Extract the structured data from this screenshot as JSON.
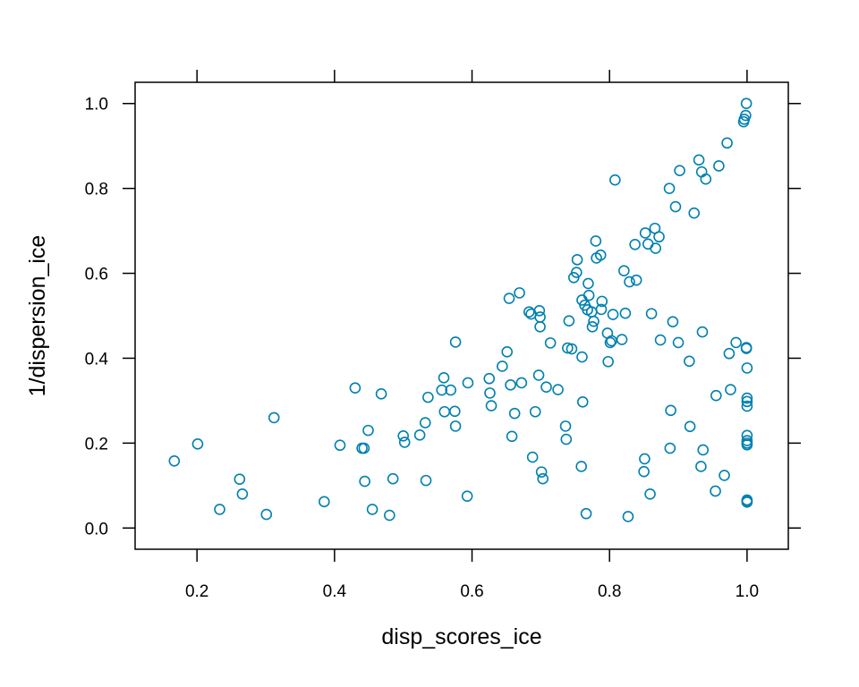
{
  "chart_data": {
    "type": "scatter",
    "xlabel": "disp_scores_ice",
    "ylabel": "1/dispersion_ice",
    "xlim": [
      0.11,
      1.06
    ],
    "ylim": [
      -0.05,
      1.05
    ],
    "xticks": [
      0.2,
      0.4,
      0.6,
      0.8,
      1.0
    ],
    "yticks": [
      0.0,
      0.2,
      0.4,
      0.6,
      0.8,
      1.0
    ],
    "xtick_labels": [
      "0.2",
      "0.4",
      "0.6",
      "0.8",
      "1.0"
    ],
    "ytick_labels": [
      "0.0",
      "0.2",
      "0.4",
      "0.6",
      "0.8",
      "1.0"
    ],
    "marker_color": "#0080B0",
    "grid": false,
    "points": [
      {
        "x": 0.167,
        "y": 0.158
      },
      {
        "x": 0.201,
        "y": 0.198
      },
      {
        "x": 0.233,
        "y": 0.044
      },
      {
        "x": 0.262,
        "y": 0.115
      },
      {
        "x": 0.266,
        "y": 0.08
      },
      {
        "x": 0.301,
        "y": 0.032
      },
      {
        "x": 0.312,
        "y": 0.26
      },
      {
        "x": 0.385,
        "y": 0.062
      },
      {
        "x": 0.408,
        "y": 0.195
      },
      {
        "x": 0.43,
        "y": 0.33
      },
      {
        "x": 0.44,
        "y": 0.188
      },
      {
        "x": 0.443,
        "y": 0.188
      },
      {
        "x": 0.444,
        "y": 0.11
      },
      {
        "x": 0.449,
        "y": 0.23
      },
      {
        "x": 0.455,
        "y": 0.044
      },
      {
        "x": 0.468,
        "y": 0.316
      },
      {
        "x": 0.48,
        "y": 0.03
      },
      {
        "x": 0.485,
        "y": 0.116
      },
      {
        "x": 0.5,
        "y": 0.217
      },
      {
        "x": 0.502,
        "y": 0.202
      },
      {
        "x": 0.524,
        "y": 0.219
      },
      {
        "x": 0.532,
        "y": 0.248
      },
      {
        "x": 0.533,
        "y": 0.112
      },
      {
        "x": 0.536,
        "y": 0.308
      },
      {
        "x": 0.556,
        "y": 0.325
      },
      {
        "x": 0.559,
        "y": 0.354
      },
      {
        "x": 0.56,
        "y": 0.274
      },
      {
        "x": 0.569,
        "y": 0.325
      },
      {
        "x": 0.575,
        "y": 0.275
      },
      {
        "x": 0.576,
        "y": 0.24
      },
      {
        "x": 0.576,
        "y": 0.438
      },
      {
        "x": 0.593,
        "y": 0.075
      },
      {
        "x": 0.594,
        "y": 0.342
      },
      {
        "x": 0.625,
        "y": 0.352
      },
      {
        "x": 0.626,
        "y": 0.318
      },
      {
        "x": 0.628,
        "y": 0.288
      },
      {
        "x": 0.644,
        "y": 0.381
      },
      {
        "x": 0.651,
        "y": 0.415
      },
      {
        "x": 0.654,
        "y": 0.541
      },
      {
        "x": 0.656,
        "y": 0.337
      },
      {
        "x": 0.658,
        "y": 0.216
      },
      {
        "x": 0.662,
        "y": 0.27
      },
      {
        "x": 0.669,
        "y": 0.554
      },
      {
        "x": 0.672,
        "y": 0.342
      },
      {
        "x": 0.683,
        "y": 0.509
      },
      {
        "x": 0.686,
        "y": 0.504
      },
      {
        "x": 0.688,
        "y": 0.167
      },
      {
        "x": 0.692,
        "y": 0.274
      },
      {
        "x": 0.697,
        "y": 0.36
      },
      {
        "x": 0.698,
        "y": 0.512
      },
      {
        "x": 0.699,
        "y": 0.497
      },
      {
        "x": 0.699,
        "y": 0.474
      },
      {
        "x": 0.701,
        "y": 0.132
      },
      {
        "x": 0.703,
        "y": 0.116
      },
      {
        "x": 0.708,
        "y": 0.332
      },
      {
        "x": 0.714,
        "y": 0.436
      },
      {
        "x": 0.725,
        "y": 0.326
      },
      {
        "x": 0.736,
        "y": 0.24
      },
      {
        "x": 0.737,
        "y": 0.209
      },
      {
        "x": 0.739,
        "y": 0.424
      },
      {
        "x": 0.741,
        "y": 0.488
      },
      {
        "x": 0.745,
        "y": 0.422
      },
      {
        "x": 0.748,
        "y": 0.59
      },
      {
        "x": 0.752,
        "y": 0.602
      },
      {
        "x": 0.753,
        "y": 0.632
      },
      {
        "x": 0.759,
        "y": 0.145
      },
      {
        "x": 0.76,
        "y": 0.537
      },
      {
        "x": 0.76,
        "y": 0.403
      },
      {
        "x": 0.761,
        "y": 0.297
      },
      {
        "x": 0.764,
        "y": 0.525
      },
      {
        "x": 0.766,
        "y": 0.034
      },
      {
        "x": 0.768,
        "y": 0.514
      },
      {
        "x": 0.769,
        "y": 0.576
      },
      {
        "x": 0.77,
        "y": 0.548
      },
      {
        "x": 0.774,
        "y": 0.509
      },
      {
        "x": 0.775,
        "y": 0.474
      },
      {
        "x": 0.777,
        "y": 0.487
      },
      {
        "x": 0.78,
        "y": 0.676
      },
      {
        "x": 0.781,
        "y": 0.636
      },
      {
        "x": 0.787,
        "y": 0.643
      },
      {
        "x": 0.788,
        "y": 0.515
      },
      {
        "x": 0.789,
        "y": 0.534
      },
      {
        "x": 0.797,
        "y": 0.459
      },
      {
        "x": 0.798,
        "y": 0.392
      },
      {
        "x": 0.801,
        "y": 0.437
      },
      {
        "x": 0.803,
        "y": 0.441
      },
      {
        "x": 0.805,
        "y": 0.503
      },
      {
        "x": 0.808,
        "y": 0.82
      },
      {
        "x": 0.818,
        "y": 0.444
      },
      {
        "x": 0.821,
        "y": 0.606
      },
      {
        "x": 0.823,
        "y": 0.506
      },
      {
        "x": 0.827,
        "y": 0.027
      },
      {
        "x": 0.829,
        "y": 0.58
      },
      {
        "x": 0.837,
        "y": 0.668
      },
      {
        "x": 0.839,
        "y": 0.584
      },
      {
        "x": 0.85,
        "y": 0.133
      },
      {
        "x": 0.851,
        "y": 0.163
      },
      {
        "x": 0.852,
        "y": 0.695
      },
      {
        "x": 0.856,
        "y": 0.669
      },
      {
        "x": 0.859,
        "y": 0.08
      },
      {
        "x": 0.861,
        "y": 0.505
      },
      {
        "x": 0.866,
        "y": 0.706
      },
      {
        "x": 0.867,
        "y": 0.659
      },
      {
        "x": 0.872,
        "y": 0.686
      },
      {
        "x": 0.874,
        "y": 0.443
      },
      {
        "x": 0.887,
        "y": 0.8
      },
      {
        "x": 0.888,
        "y": 0.188
      },
      {
        "x": 0.889,
        "y": 0.277
      },
      {
        "x": 0.892,
        "y": 0.486
      },
      {
        "x": 0.896,
        "y": 0.757
      },
      {
        "x": 0.9,
        "y": 0.437
      },
      {
        "x": 0.902,
        "y": 0.842
      },
      {
        "x": 0.916,
        "y": 0.393
      },
      {
        "x": 0.917,
        "y": 0.239
      },
      {
        "x": 0.923,
        "y": 0.742
      },
      {
        "x": 0.93,
        "y": 0.867
      },
      {
        "x": 0.933,
        "y": 0.145
      },
      {
        "x": 0.934,
        "y": 0.839
      },
      {
        "x": 0.935,
        "y": 0.462
      },
      {
        "x": 0.936,
        "y": 0.184
      },
      {
        "x": 0.94,
        "y": 0.822
      },
      {
        "x": 0.954,
        "y": 0.087
      },
      {
        "x": 0.955,
        "y": 0.312
      },
      {
        "x": 0.959,
        "y": 0.853
      },
      {
        "x": 0.967,
        "y": 0.124
      },
      {
        "x": 0.971,
        "y": 0.907
      },
      {
        "x": 0.974,
        "y": 0.411
      },
      {
        "x": 0.976,
        "y": 0.326
      },
      {
        "x": 0.984,
        "y": 0.437
      },
      {
        "x": 0.995,
        "y": 0.957
      },
      {
        "x": 0.996,
        "y": 0.963
      },
      {
        "x": 0.998,
        "y": 0.972
      },
      {
        "x": 0.999,
        "y": 1.0
      },
      {
        "x": 0.999,
        "y": 0.425
      },
      {
        "x": 0.999,
        "y": 0.423
      },
      {
        "x": 1.0,
        "y": 0.377
      },
      {
        "x": 1.0,
        "y": 0.306
      },
      {
        "x": 1.0,
        "y": 0.298
      },
      {
        "x": 1.0,
        "y": 0.287
      },
      {
        "x": 1.0,
        "y": 0.218
      },
      {
        "x": 1.0,
        "y": 0.206
      },
      {
        "x": 1.0,
        "y": 0.2
      },
      {
        "x": 1.0,
        "y": 0.196
      },
      {
        "x": 1.0,
        "y": 0.066
      },
      {
        "x": 1.0,
        "y": 0.063
      },
      {
        "x": 1.0,
        "y": 0.061
      }
    ]
  }
}
